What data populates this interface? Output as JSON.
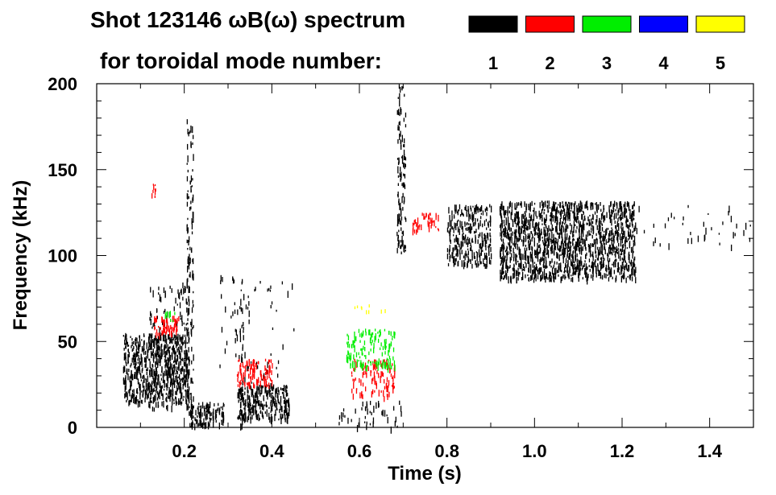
{
  "chart_data": {
    "type": "heatmap",
    "title_line1": "Shot 123146 ωB(ω) spectrum",
    "title_line2": "for toroidal mode number:",
    "xlabel": "Time (s)",
    "ylabel": "Frequency (kHz)",
    "xlim": [
      0.0,
      1.5
    ],
    "ylim": [
      0,
      200
    ],
    "xticks": [
      0.2,
      0.4,
      0.6,
      0.8,
      1.0,
      1.2,
      1.4
    ],
    "xtick_labels": [
      "0.2",
      "0.4",
      "0.6",
      "0.8",
      "1.0",
      "1.2",
      "1.4"
    ],
    "yticks": [
      0,
      50,
      100,
      150,
      200
    ],
    "ytick_labels": [
      "0",
      "50",
      "100",
      "150",
      "200"
    ],
    "legend": [
      {
        "label": "1",
        "color": "#000000"
      },
      {
        "label": "2",
        "color": "#ff0000"
      },
      {
        "label": "3",
        "color": "#00ee00"
      },
      {
        "label": "4",
        "color": "#0000ff"
      },
      {
        "label": "5",
        "color": "#ffff00"
      }
    ],
    "regions": [
      {
        "name": "n1-early-burst",
        "mode": 1,
        "t": [
          0.06,
          0.21
        ],
        "f": [
          15,
          55
        ],
        "density": 0.55
      },
      {
        "name": "n1-early-column",
        "mode": 1,
        "t": [
          0.12,
          0.21
        ],
        "f": [
          10,
          85
        ],
        "density": 0.12
      },
      {
        "name": "n1-flash-021",
        "mode": 1,
        "t": [
          0.205,
          0.22
        ],
        "f": [
          0,
          180
        ],
        "density": 0.25
      },
      {
        "name": "n1-chirp-low-a",
        "mode": 1,
        "t": [
          0.21,
          0.29
        ],
        "f": [
          2,
          15
        ],
        "density": 0.6
      },
      {
        "name": "n1-flash-033",
        "mode": 1,
        "t": [
          0.325,
          0.335
        ],
        "f": [
          0,
          90
        ],
        "density": 0.2
      },
      {
        "name": "n1-chirp-low-b",
        "mode": 1,
        "t": [
          0.32,
          0.44
        ],
        "f": [
          5,
          25
        ],
        "density": 0.6
      },
      {
        "name": "n1-mid-scatter",
        "mode": 1,
        "t": [
          0.28,
          0.45
        ],
        "f": [
          25,
          90
        ],
        "density": 0.03
      },
      {
        "name": "n1-low-066",
        "mode": 1,
        "t": [
          0.55,
          0.7
        ],
        "f": [
          0,
          16
        ],
        "density": 0.1
      },
      {
        "name": "n1-flash-070",
        "mode": 1,
        "t": [
          0.685,
          0.705
        ],
        "f": [
          100,
          200
        ],
        "density": 0.3
      },
      {
        "name": "n1-tae-a",
        "mode": 1,
        "t": [
          0.8,
          0.9
        ],
        "f": [
          95,
          130
        ],
        "density": 0.4
      },
      {
        "name": "n1-tae-b",
        "mode": 1,
        "t": [
          0.92,
          1.23
        ],
        "f": [
          87,
          132
        ],
        "density": 0.55
      },
      {
        "name": "n1-tae-tail",
        "mode": 1,
        "t": [
          1.23,
          1.5
        ],
        "f": [
          105,
          130
        ],
        "density": 0.03
      },
      {
        "name": "n2-chirp-early",
        "mode": 2,
        "t": [
          0.13,
          0.19
        ],
        "f": [
          55,
          65
        ],
        "density": 0.5
      },
      {
        "name": "n2-blip-140",
        "mode": 2,
        "t": [
          0.125,
          0.135
        ],
        "f": [
          135,
          142
        ],
        "density": 0.6
      },
      {
        "name": "n2-chirp-mid",
        "mode": 2,
        "t": [
          0.32,
          0.4
        ],
        "f": [
          25,
          40
        ],
        "density": 0.45
      },
      {
        "name": "n2-burst-063",
        "mode": 2,
        "t": [
          0.58,
          0.68
        ],
        "f": [
          18,
          40
        ],
        "density": 0.25
      },
      {
        "name": "n2-chirp-075",
        "mode": 2,
        "t": [
          0.72,
          0.78
        ],
        "f": [
          115,
          125
        ],
        "density": 0.4
      },
      {
        "name": "n3-early",
        "mode": 3,
        "t": [
          0.15,
          0.18
        ],
        "f": [
          62,
          68
        ],
        "density": 0.3
      },
      {
        "name": "n3-burst-063",
        "mode": 3,
        "t": [
          0.57,
          0.68
        ],
        "f": [
          35,
          58
        ],
        "density": 0.3
      },
      {
        "name": "n5-blip-058",
        "mode": 5,
        "t": [
          0.57,
          0.68
        ],
        "f": [
          68,
          72
        ],
        "density": 0.1
      }
    ]
  }
}
